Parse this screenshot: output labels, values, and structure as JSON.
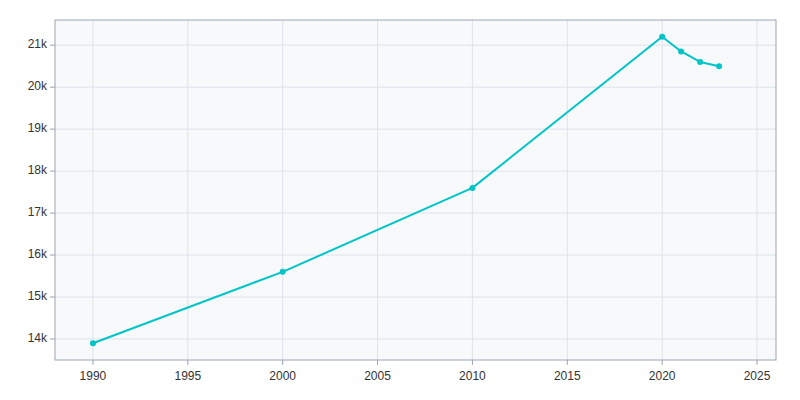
{
  "chart_data": {
    "type": "line",
    "x": [
      1990,
      2000,
      2010,
      2020,
      2021,
      2022,
      2023
    ],
    "values": [
      13900,
      15600,
      17600,
      21200,
      20850,
      20600,
      20500
    ],
    "color": "#00C4C8",
    "marker": "circle",
    "xlim": [
      1988,
      2026
    ],
    "ylim": [
      13500,
      21600
    ],
    "xticks": [
      1990,
      1995,
      2000,
      2005,
      2010,
      2015,
      2020,
      2025
    ],
    "yticks": [
      {
        "value": 14000,
        "label": "14k"
      },
      {
        "value": 15000,
        "label": "15k"
      },
      {
        "value": 16000,
        "label": "16k"
      },
      {
        "value": 17000,
        "label": "17k"
      },
      {
        "value": 18000,
        "label": "18k"
      },
      {
        "value": 19000,
        "label": "19k"
      },
      {
        "value": 20000,
        "label": "20k"
      },
      {
        "value": 21000,
        "label": "21k"
      }
    ],
    "grid": true
  }
}
